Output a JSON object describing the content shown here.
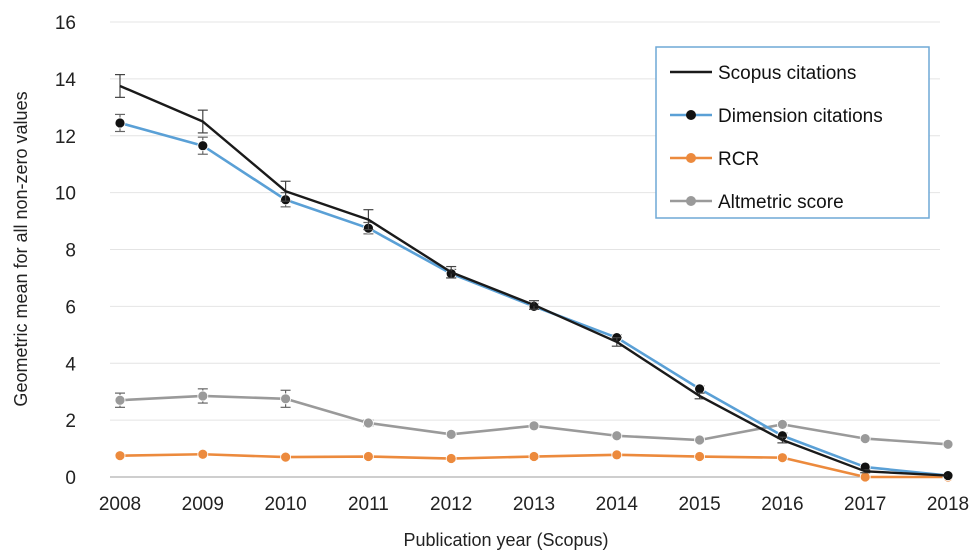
{
  "chart_data": {
    "type": "line",
    "xlabel": "Publication year (Scopus)",
    "ylabel": "Geometric mean for all non-zero values",
    "x": [
      2008,
      2009,
      2010,
      2011,
      2012,
      2013,
      2014,
      2015,
      2016,
      2017,
      2018
    ],
    "ylim": [
      0,
      16
    ],
    "yticks": [
      0,
      2,
      4,
      6,
      8,
      10,
      12,
      14,
      16
    ],
    "grid": "horizontal",
    "legend_position": "top-right",
    "series": [
      {
        "name": "Scopus citations",
        "color": "#1a1a1a",
        "marker": "none",
        "values": [
          13.75,
          12.5,
          10.05,
          9.05,
          7.2,
          6.05,
          4.75,
          2.85,
          1.3,
          0.2,
          0.05
        ],
        "error": [
          0.4,
          0.4,
          0.35,
          0.35,
          0.2,
          0.15,
          0.15,
          0.1,
          0.1,
          0.05,
          0.02
        ]
      },
      {
        "name": "Dimension citations",
        "color": "#5aa0d6",
        "marker": "circle-black",
        "values": [
          12.45,
          11.65,
          9.75,
          8.75,
          7.15,
          6.0,
          4.9,
          3.1,
          1.45,
          0.35,
          0.05
        ],
        "error": [
          0.3,
          0.3,
          0.25,
          0.2,
          0.15,
          0.1,
          0.1,
          0.1,
          0.1,
          0.05,
          0.02
        ]
      },
      {
        "name": "RCR",
        "color": "#ec8a3d",
        "marker": "circle",
        "values": [
          0.75,
          0.8,
          0.7,
          0.72,
          0.65,
          0.72,
          0.78,
          0.72,
          0.68,
          0.0,
          0.0
        ],
        "error": [
          0,
          0,
          0,
          0,
          0,
          0,
          0,
          0,
          0,
          0,
          0
        ]
      },
      {
        "name": "Altmetric score",
        "color": "#9a9a9a",
        "marker": "circle",
        "values": [
          2.7,
          2.85,
          2.75,
          1.9,
          1.5,
          1.8,
          1.45,
          1.3,
          1.85,
          1.35,
          1.15
        ],
        "error": [
          0.25,
          0.25,
          0.3,
          0.1,
          0.05,
          0.05,
          0.05,
          0.05,
          0.05,
          0.05,
          0.05
        ]
      }
    ]
  }
}
